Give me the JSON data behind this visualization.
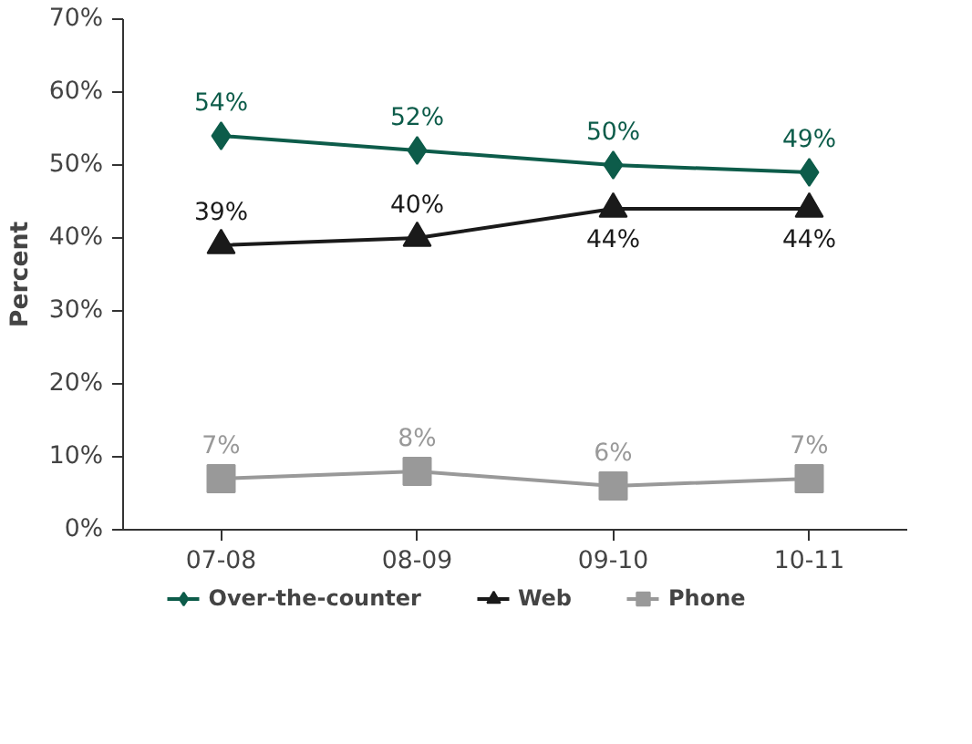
{
  "chart_data": {
    "type": "line",
    "ylabel": "Percent",
    "categories": [
      "07-08",
      "08-09",
      "09-10",
      "10-11"
    ],
    "series": [
      {
        "name": "Over-the-counter",
        "color": "#0d5c4a",
        "marker": "diamond",
        "values": [
          54,
          52,
          50,
          49
        ],
        "value_labels": [
          "54%",
          "52%",
          "50%",
          "49%"
        ]
      },
      {
        "name": "Web",
        "color": "#1a1a1a",
        "marker": "triangle",
        "values": [
          39,
          40,
          44,
          44
        ],
        "value_labels": [
          "39%",
          "40%",
          "44%",
          "44%"
        ]
      },
      {
        "name": "Phone",
        "color": "#999999",
        "marker": "square",
        "values": [
          7,
          8,
          6,
          7
        ],
        "value_labels": [
          "7%",
          "8%",
          "6%",
          "7%"
        ]
      }
    ],
    "ylim": [
      0,
      70
    ],
    "yticks": [
      {
        "value": 0,
        "label": "0%"
      },
      {
        "value": 10,
        "label": "10%"
      },
      {
        "value": 20,
        "label": "20%"
      },
      {
        "value": 30,
        "label": "30%"
      },
      {
        "value": 40,
        "label": "40%"
      },
      {
        "value": 50,
        "label": "50%"
      },
      {
        "value": 60,
        "label": "60%"
      },
      {
        "value": 70,
        "label": "70%"
      }
    ],
    "legend": "bottom"
  }
}
